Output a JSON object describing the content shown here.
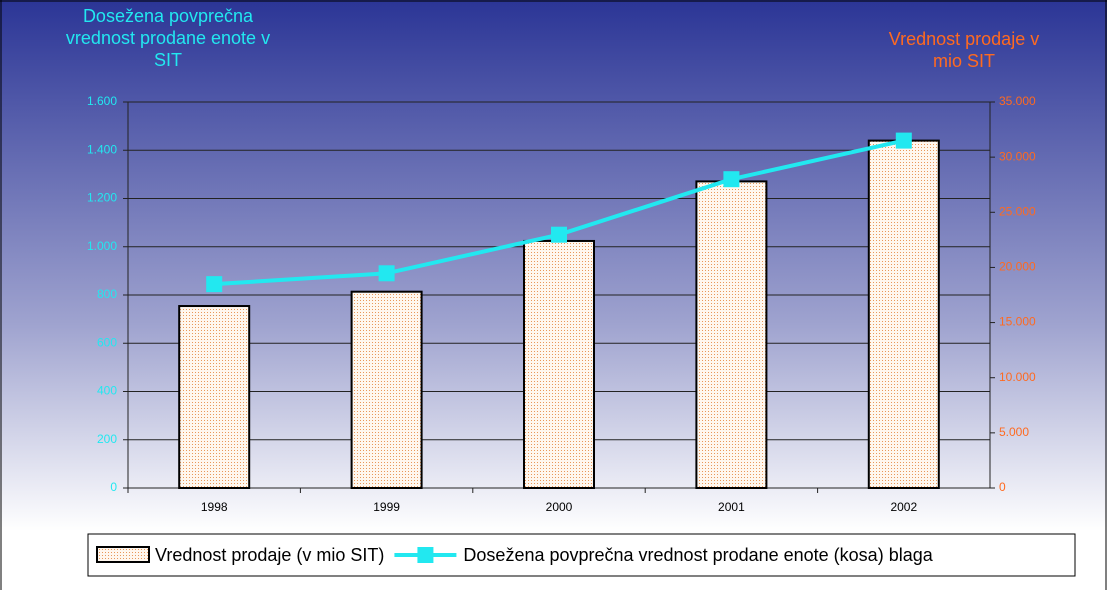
{
  "chart_data": {
    "type": "bar",
    "y_axis_title": "Dosežena povprečna vrednost prodane enote v SIT",
    "y2_axis_title": "Vrednost prodaje v mio SIT",
    "categories": [
      "1998",
      "1999",
      "2000",
      "2001",
      "2002"
    ],
    "series": [
      {
        "name": "Vrednost prodaje (v mio SIT)",
        "type": "bar",
        "axis": "y2",
        "color": "#f4a460",
        "values": [
          16500,
          17800,
          22400,
          27800,
          31500
        ]
      },
      {
        "name": "Dosežena povprečna vrednost prodane enote (kosa) blaga",
        "type": "line",
        "axis": "y",
        "color": "#22e8f0",
        "values": [
          845,
          890,
          1050,
          1280,
          1440
        ]
      }
    ],
    "ylim": [
      0,
      1600
    ],
    "yticks": [
      0,
      200,
      400,
      600,
      800,
      {
        "value": 1000,
        "label": "1.000"
      },
      {
        "value": 1200,
        "label": "1.200"
      },
      {
        "value": 1400,
        "label": "1.400"
      },
      {
        "value": 1600,
        "label": "1.600"
      }
    ],
    "y2lim": [
      0,
      35000
    ],
    "y2ticks": [
      0,
      {
        "value": 5000,
        "label": "5.000"
      },
      {
        "value": 10000,
        "label": "10.000"
      },
      {
        "value": 15000,
        "label": "15.000"
      },
      {
        "value": 20000,
        "label": "20.000"
      },
      {
        "value": 25000,
        "label": "25.000"
      },
      {
        "value": 30000,
        "label": "30.000"
      },
      {
        "value": 35000,
        "label": "35.000"
      }
    ],
    "grid": true,
    "legend": "bottom"
  }
}
